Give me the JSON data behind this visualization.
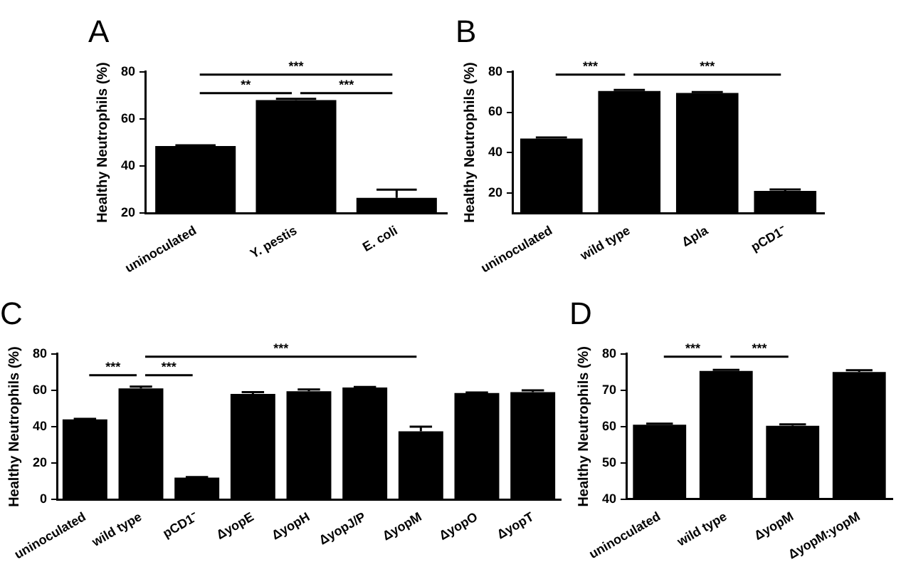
{
  "chart_data": [
    {
      "type": "bar",
      "title": "A",
      "ylabel": "Healthy Neutrophils (%)",
      "categories": [
        "uninoculated",
        "Y. pestis",
        "E. coli"
      ],
      "values": [
        48.5,
        68,
        26.5
      ],
      "errors": [
        0.3,
        0.5,
        3.5
      ],
      "color": "#000000",
      "ylim": [
        20,
        80
      ],
      "yticks": [
        20,
        40,
        60,
        80
      ],
      "grid": false,
      "annotations": [
        "**",
        "***",
        "***"
      ]
    },
    {
      "type": "bar",
      "title": "B",
      "ylabel": "Healthy Neutrophils (%)",
      "categories": [
        "uninoculated",
        "wild type",
        "Δpla",
        "pCD1⁻"
      ],
      "values": [
        47,
        70.5,
        69.5,
        21
      ],
      "errors": [
        0.5,
        0.5,
        0.5,
        0.7
      ],
      "color": "#000000",
      "ylim": [
        10,
        80
      ],
      "yticks": [
        20,
        40,
        60,
        80
      ],
      "grid": false,
      "annotations": [
        "***",
        "***"
      ]
    },
    {
      "type": "bar",
      "title": "C",
      "ylabel": "Healthy Neutrophils (%)",
      "categories": [
        "uninoculated",
        "wild type",
        "pCD1⁻",
        "ΔyopE",
        "ΔyopH",
        "ΔyopJ/P",
        "ΔyopM",
        "ΔyopO",
        "ΔyopT"
      ],
      "values": [
        44,
        61,
        12,
        58,
        59.5,
        61.5,
        37.5,
        58.5,
        59
      ],
      "errors": [
        0.3,
        1,
        0.3,
        1,
        1,
        0.3,
        2.5,
        0.3,
        1
      ],
      "color": "#000000",
      "ylim": [
        0,
        80
      ],
      "yticks": [
        0,
        20,
        40,
        60,
        80
      ],
      "grid": false,
      "annotations": [
        "***",
        "***",
        "***"
      ]
    },
    {
      "type": "bar",
      "title": "D",
      "ylabel": "Healthy Neutrophils (%)",
      "categories": [
        "uninoculated",
        "wild type",
        "ΔyopM",
        "ΔyopM:yopM"
      ],
      "values": [
        60.5,
        75.3,
        60.2,
        75
      ],
      "errors": [
        0.3,
        0.3,
        0.4,
        0.5
      ],
      "color": "#000000",
      "ylim": [
        40,
        80
      ],
      "yticks": [
        40,
        50,
        60,
        70,
        80
      ],
      "grid": false,
      "annotations": [
        "***",
        "***"
      ]
    }
  ]
}
